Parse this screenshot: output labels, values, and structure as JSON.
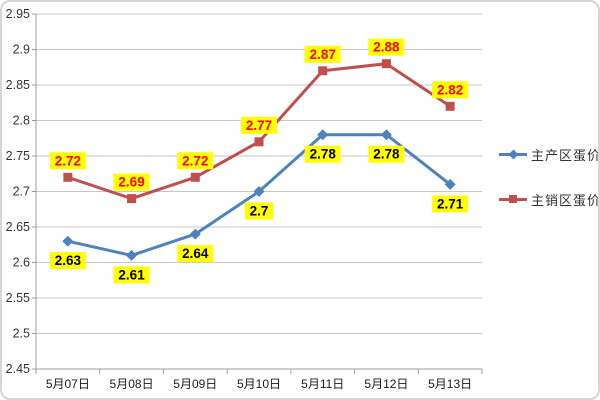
{
  "chart_data": {
    "type": "line",
    "categories": [
      "5月07日",
      "5月08日",
      "5月09日",
      "5月10日",
      "5月11日",
      "5月12日",
      "5月13日"
    ],
    "series": [
      {
        "id": "producing-area",
        "name": "主产区蛋价",
        "values": [
          2.63,
          2.61,
          2.64,
          2.7,
          2.78,
          2.78,
          2.71
        ],
        "labels": [
          "2.63",
          "2.61",
          "2.64",
          "2.7",
          "2.78",
          "2.78",
          "2.71"
        ],
        "color": "#4F81BD",
        "marker": "diamond",
        "label_text_color": "#000000",
        "label_position": "below"
      },
      {
        "id": "selling-area",
        "name": "主销区蛋价",
        "values": [
          2.72,
          2.69,
          2.72,
          2.77,
          2.87,
          2.88,
          2.82
        ],
        "labels": [
          "2.72",
          "2.69",
          "2.72",
          "2.77",
          "2.87",
          "2.88",
          "2.82"
        ],
        "color": "#C0504D",
        "marker": "square",
        "label_text_color": "#FF0000",
        "label_position": "above"
      }
    ],
    "title": "",
    "xlabel": "",
    "ylabel": "",
    "ylim": [
      2.45,
      2.95
    ],
    "ytick_step": 0.05,
    "ytick_labels": [
      "2.45",
      "2.5",
      "2.55",
      "2.6",
      "2.65",
      "2.7",
      "2.75",
      "2.8",
      "2.85",
      "2.9",
      "2.95"
    ],
    "grid": true,
    "legend_position": "right",
    "label_bg_color": "#FFFF00",
    "grid_color": "#C6C6C6",
    "axis_color": "#9C9C9C",
    "tick_text_color": "#333333"
  }
}
